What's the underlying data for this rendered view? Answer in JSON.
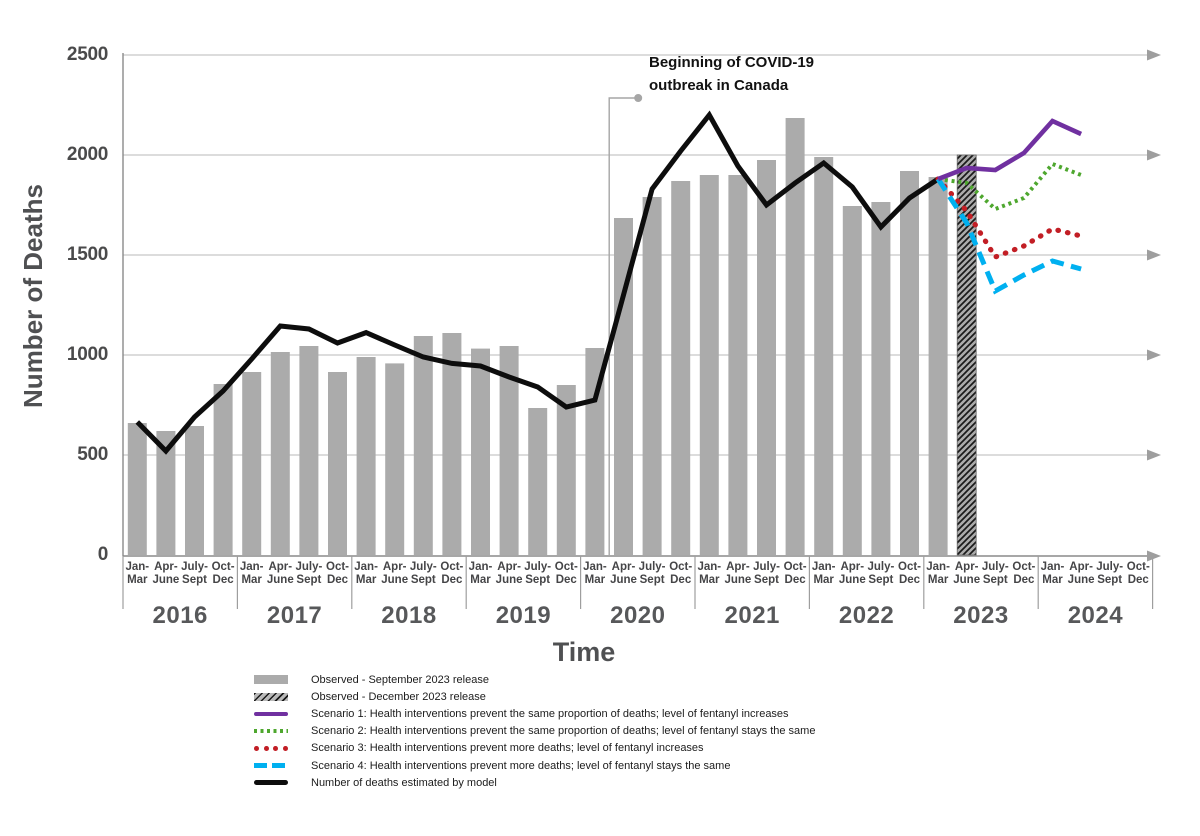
{
  "annotation": {
    "line1": "Beginning of COVID-19",
    "line2": "outbreak in Canada"
  },
  "legend": {
    "items": [
      {
        "label": "Observed - September 2023 release",
        "swatch": "bar"
      },
      {
        "label": "Observed - December 2023 release",
        "swatch": "hatch"
      },
      {
        "label": "Scenario 1: Health interventions prevent the same proportion of deaths; level of fentanyl increases",
        "swatch": "solid",
        "color": "#7030A0"
      },
      {
        "label": "Scenario 2: Health interventions prevent the same proportion of deaths; level of fentanyl stays the same",
        "swatch": "sqdot",
        "color": "#4EA72E"
      },
      {
        "label": "Scenario 3: Health interventions prevent more deaths; level of fentanyl increases",
        "swatch": "rddots",
        "color": "#C21E25"
      },
      {
        "label": "Scenario 4: Health interventions prevent more deaths; level of fentanyl stays the same",
        "swatch": "dash",
        "color": "#00B0F0"
      },
      {
        "label": "Number of deaths estimated by model",
        "swatch": "solid",
        "color": "#0D0D0D"
      }
    ]
  },
  "chart_data": {
    "type": "bar+line combo",
    "title": "",
    "xlabel": "Time",
    "ylabel": "Number of Deaths",
    "ylim": [
      0,
      2500
    ],
    "y_ticks": [
      0,
      500,
      1000,
      1500,
      2000,
      2500
    ],
    "grid": "horizontal gridlines with right arrowheads",
    "legend_position": "below chart, left",
    "years": [
      "2016",
      "2017",
      "2018",
      "2019",
      "2020",
      "2021",
      "2022",
      "2023",
      "2024"
    ],
    "quarter_labels": [
      [
        "Jan-",
        "Mar"
      ],
      [
        "Apr-",
        "June"
      ],
      [
        "July-",
        "Sept"
      ],
      [
        "Oct-",
        "Dec"
      ]
    ],
    "covid_annotation_before_quarter_index": 17,
    "colors": {
      "bar": "#ABABAB",
      "hatch_stripe": "#1a1a1a",
      "model": "#0D0D0D",
      "scenario1": "#7030A0",
      "scenario2": "#4EA72E",
      "scenario3": "#C21E25",
      "scenario4": "#00B0F0",
      "gridline": "#C6C6C6",
      "axis": "#8a8a8a",
      "arrow": "#9e9e9e",
      "callout": "#a6a6a6"
    },
    "series": [
      {
        "id": "observed_sep2023",
        "name": "Observed - September 2023 release",
        "type": "bar",
        "start": 0,
        "values": [
          660,
          620,
          645,
          855,
          915,
          1015,
          1045,
          915,
          990,
          958,
          1095,
          1110,
          1032,
          1045,
          735,
          850,
          1035,
          1685,
          1790,
          1870,
          1900,
          1900,
          1975,
          2185,
          1990,
          1745,
          1765,
          1920,
          1890
        ]
      },
      {
        "id": "observed_dec2023",
        "name": "Observed - December 2023 release",
        "type": "bar",
        "hatched": true,
        "start": 29,
        "values": [
          2000
        ]
      },
      {
        "id": "model",
        "name": "Number of deaths estimated by model",
        "type": "line",
        "style": "solid",
        "color_key": "model",
        "width": 5,
        "start": 0,
        "values": [
          665,
          520,
          690,
          820,
          980,
          1145,
          1130,
          1060,
          1112,
          1050,
          990,
          958,
          945,
          890,
          840,
          740,
          775,
          1300,
          1830,
          2020,
          2200,
          1945,
          1750,
          1860,
          1960,
          1840,
          1640,
          1785,
          1880
        ]
      },
      {
        "id": "scenario2",
        "name": "Scenario 2",
        "type": "line",
        "style": "sqdot",
        "color_key": "scenario2",
        "width": 4,
        "start": 28,
        "values": [
          1880,
          1860,
          1730,
          1785,
          1955,
          1900
        ]
      },
      {
        "id": "scenario3",
        "name": "Scenario 3",
        "type": "line",
        "style": "rddot",
        "color_key": "scenario3",
        "width": 5.2,
        "start": 28,
        "values": [
          1880,
          1720,
          1490,
          1545,
          1630,
          1595
        ]
      },
      {
        "id": "scenario4",
        "name": "Scenario 4",
        "type": "line",
        "style": "dash",
        "color_key": "scenario4",
        "width": 5,
        "start": 28,
        "values": [
          1880,
          1660,
          1320,
          1400,
          1470,
          1430
        ]
      },
      {
        "id": "scenario1",
        "name": "Scenario 1",
        "type": "line",
        "style": "solid",
        "color_key": "scenario1",
        "width": 4.6,
        "start": 28,
        "values": [
          1880,
          1935,
          1925,
          2010,
          2170,
          2105
        ]
      }
    ]
  }
}
